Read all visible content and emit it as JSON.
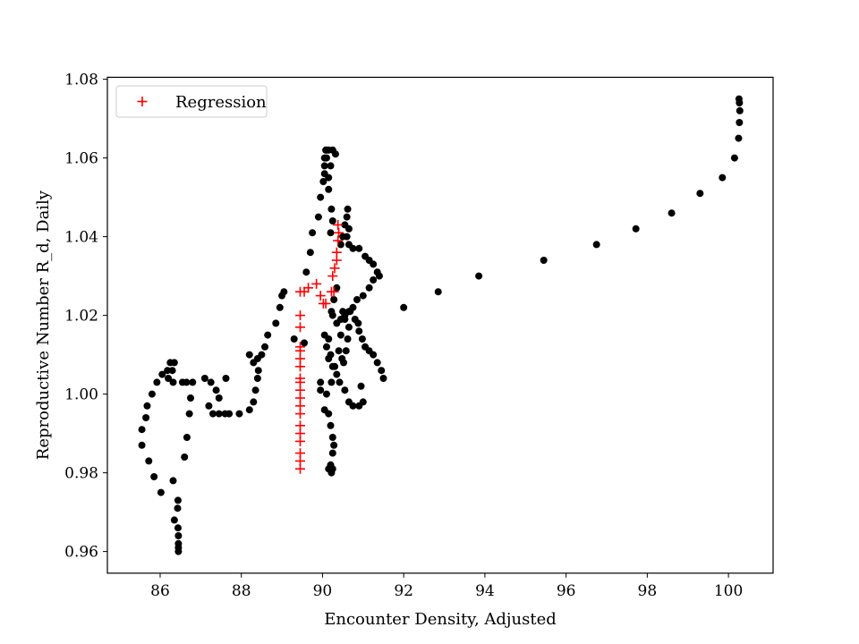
{
  "chart_data": {
    "type": "scatter",
    "xlabel": "Encounter Density, Adjusted",
    "ylabel": "Reproductive Number R_d, Daily",
    "xlim": [
      84.7,
      101.1
    ],
    "ylim": [
      0.9545,
      1.0805
    ],
    "x_ticks": [
      86,
      88,
      90,
      92,
      94,
      96,
      98,
      100
    ],
    "y_ticks": [
      0.96,
      0.98,
      1.0,
      1.02,
      1.04,
      1.06,
      1.08
    ],
    "x_tick_labels": [
      "86",
      "88",
      "90",
      "92",
      "94",
      "96",
      "98",
      "100"
    ],
    "y_tick_labels": [
      "0.96",
      "0.98",
      "1.00",
      "1.02",
      "1.04",
      "1.06",
      "1.08"
    ],
    "grid": false,
    "legend": {
      "position": "top-left",
      "entries": [
        "Regression"
      ]
    },
    "colors": {
      "observed": "#000000",
      "regression": "#ff0000",
      "frame": "#000000"
    },
    "series": [
      {
        "marker": "circle",
        "color": "#000000",
        "points": [
          [
            86.45,
            0.96
          ],
          [
            86.45,
            0.961
          ],
          [
            86.45,
            0.962
          ],
          [
            86.45,
            0.964
          ],
          [
            86.44,
            0.966
          ],
          [
            86.35,
            0.968
          ],
          [
            86.43,
            0.971
          ],
          [
            86.44,
            0.973
          ],
          [
            86.32,
            0.978
          ],
          [
            86.02,
            0.975
          ],
          [
            85.85,
            0.979
          ],
          [
            85.72,
            0.983
          ],
          [
            85.55,
            0.987
          ],
          [
            85.55,
            0.991
          ],
          [
            85.65,
            0.994
          ],
          [
            85.68,
            0.997
          ],
          [
            85.8,
            1.0
          ],
          [
            85.92,
            1.003
          ],
          [
            86.05,
            1.005
          ],
          [
            86.18,
            1.006
          ],
          [
            86.25,
            1.008
          ],
          [
            86.35,
            1.008
          ],
          [
            86.3,
            1.006
          ],
          [
            86.2,
            1.004
          ],
          [
            86.32,
            1.003
          ],
          [
            86.55,
            1.003
          ],
          [
            86.65,
            1.003
          ],
          [
            86.8,
            1.003
          ],
          [
            86.75,
            0.999
          ],
          [
            86.72,
            0.995
          ],
          [
            86.66,
            0.989
          ],
          [
            86.6,
            0.984
          ],
          [
            87.1,
            1.004
          ],
          [
            87.25,
            1.003
          ],
          [
            87.2,
            0.997
          ],
          [
            87.3,
            0.995
          ],
          [
            87.45,
            0.995
          ],
          [
            87.6,
            0.995
          ],
          [
            87.7,
            0.995
          ],
          [
            87.95,
            0.995
          ],
          [
            87.38,
            1.001
          ],
          [
            87.62,
            1.004
          ],
          [
            87.45,
            0.999
          ],
          [
            88.2,
            0.996
          ],
          [
            88.3,
            0.998
          ],
          [
            88.35,
            1.001
          ],
          [
            88.4,
            1.004
          ],
          [
            88.3,
            1.008
          ],
          [
            88.42,
            1.006
          ],
          [
            88.2,
            1.01
          ],
          [
            88.4,
            1.009
          ],
          [
            88.5,
            1.01
          ],
          [
            88.58,
            1.012
          ],
          [
            88.65,
            1.015
          ],
          [
            88.85,
            1.018
          ],
          [
            88.95,
            1.022
          ],
          [
            89.0,
            1.025
          ],
          [
            89.05,
            1.026
          ],
          [
            89.3,
            1.014
          ],
          [
            89.55,
            1.013
          ],
          [
            89.6,
            1.031
          ],
          [
            89.7,
            1.036
          ],
          [
            89.75,
            1.041
          ],
          [
            89.9,
            1.045
          ],
          [
            89.95,
            1.05
          ],
          [
            90.02,
            1.054
          ],
          [
            90.05,
            1.058
          ],
          [
            90.05,
            1.06
          ],
          [
            90.08,
            1.062
          ],
          [
            90.1,
            1.062
          ],
          [
            90.15,
            1.062
          ],
          [
            90.25,
            1.062
          ],
          [
            90.32,
            1.061
          ],
          [
            90.2,
            1.058
          ],
          [
            90.15,
            1.055
          ],
          [
            90.15,
            1.052
          ],
          [
            90.22,
            1.047
          ],
          [
            90.25,
            1.044
          ],
          [
            90.2,
            1.041
          ],
          [
            90.1,
            1.06
          ],
          [
            90.05,
            1.056
          ],
          [
            90.45,
            1.038
          ],
          [
            90.5,
            1.04
          ],
          [
            90.55,
            1.043
          ],
          [
            90.6,
            1.045
          ],
          [
            90.62,
            1.047
          ],
          [
            90.65,
            1.042
          ],
          [
            90.6,
            1.04
          ],
          [
            90.65,
            1.038
          ],
          [
            90.75,
            1.037
          ],
          [
            90.9,
            1.037
          ],
          [
            91.05,
            1.035
          ],
          [
            91.15,
            1.034
          ],
          [
            91.25,
            1.033
          ],
          [
            91.35,
            1.031
          ],
          [
            91.4,
            1.03
          ],
          [
            91.0,
            1.025
          ],
          [
            90.85,
            1.024
          ],
          [
            90.75,
            1.022
          ],
          [
            90.65,
            1.021
          ],
          [
            90.55,
            1.02
          ],
          [
            90.45,
            1.019
          ],
          [
            90.35,
            1.018
          ],
          [
            90.25,
            1.02
          ],
          [
            90.22,
            1.021
          ],
          [
            90.28,
            1.024
          ],
          [
            90.35,
            1.027
          ],
          [
            91.15,
            1.027
          ],
          [
            91.25,
            1.029
          ],
          [
            90.4,
            1.011
          ],
          [
            90.45,
            1.015
          ],
          [
            90.48,
            1.009
          ],
          [
            90.52,
            1.008
          ],
          [
            90.58,
            1.011
          ],
          [
            90.62,
            1.014
          ],
          [
            90.65,
            1.017
          ],
          [
            90.55,
            1.019
          ],
          [
            90.5,
            1.021
          ],
          [
            90.68,
            1.021
          ],
          [
            90.8,
            1.019
          ],
          [
            90.88,
            1.018
          ],
          [
            90.9,
            1.016
          ],
          [
            90.98,
            1.014
          ],
          [
            91.05,
            1.012
          ],
          [
            91.15,
            1.011
          ],
          [
            91.25,
            1.01
          ],
          [
            91.35,
            1.008
          ],
          [
            91.45,
            1.006
          ],
          [
            91.5,
            1.004
          ],
          [
            90.95,
            1.002
          ],
          [
            91.0,
            0.998
          ],
          [
            90.9,
            0.997
          ],
          [
            90.75,
            0.997
          ],
          [
            90.65,
            0.998
          ],
          [
            90.55,
            1.001
          ],
          [
            90.42,
            1.003
          ],
          [
            90.35,
            1.005
          ],
          [
            90.3,
            1.007
          ],
          [
            90.15,
            1.009
          ],
          [
            90.1,
            1.012
          ],
          [
            90.05,
            1.015
          ],
          [
            90.15,
            1.014
          ],
          [
            90.2,
            1.01
          ],
          [
            90.25,
            1.007
          ],
          [
            90.22,
            1.003
          ],
          [
            90.1,
            1.0
          ],
          [
            89.95,
            1.001
          ],
          [
            89.95,
            1.003
          ],
          [
            90.05,
            0.996
          ],
          [
            90.15,
            0.995
          ],
          [
            90.2,
            0.992
          ],
          [
            90.25,
            0.989
          ],
          [
            90.28,
            0.987
          ],
          [
            90.25,
            0.985
          ],
          [
            90.2,
            0.982
          ],
          [
            90.15,
            0.981
          ],
          [
            90.22,
            0.98
          ],
          [
            90.25,
            0.981
          ],
          [
            92.0,
            1.022
          ],
          [
            92.85,
            1.026
          ],
          [
            93.85,
            1.03
          ],
          [
            95.45,
            1.034
          ],
          [
            96.75,
            1.038
          ],
          [
            97.72,
            1.042
          ],
          [
            98.6,
            1.046
          ],
          [
            99.3,
            1.051
          ],
          [
            99.85,
            1.055
          ],
          [
            100.15,
            1.06
          ],
          [
            100.25,
            1.065
          ],
          [
            100.27,
            1.069
          ],
          [
            100.28,
            1.072
          ],
          [
            100.27,
            1.074
          ],
          [
            100.26,
            1.075
          ]
        ]
      },
      {
        "name": "Regression",
        "marker": "plus",
        "color": "#ff0000",
        "points": [
          [
            89.45,
            0.981
          ],
          [
            89.45,
            0.983
          ],
          [
            89.45,
            0.985
          ],
          [
            89.45,
            0.988
          ],
          [
            89.45,
            0.99
          ],
          [
            89.45,
            0.992
          ],
          [
            89.45,
            0.995
          ],
          [
            89.45,
            0.997
          ],
          [
            89.45,
            0.999
          ],
          [
            89.45,
            1.001
          ],
          [
            89.45,
            1.003
          ],
          [
            89.45,
            1.004
          ],
          [
            89.45,
            1.007
          ],
          [
            89.45,
            1.009
          ],
          [
            89.45,
            1.011
          ],
          [
            89.45,
            1.012
          ],
          [
            89.45,
            1.017
          ],
          [
            89.45,
            1.02
          ],
          [
            89.45,
            1.026
          ],
          [
            89.55,
            1.026
          ],
          [
            89.65,
            1.027
          ],
          [
            89.85,
            1.028
          ],
          [
            89.95,
            1.025
          ],
          [
            90.02,
            1.023
          ],
          [
            90.08,
            1.023
          ],
          [
            90.22,
            1.026
          ],
          [
            90.28,
            1.026
          ],
          [
            90.25,
            1.03
          ],
          [
            90.3,
            1.032
          ],
          [
            90.35,
            1.034
          ],
          [
            90.35,
            1.036
          ],
          [
            90.38,
            1.039
          ],
          [
            90.4,
            1.041
          ],
          [
            90.38,
            1.043
          ]
        ]
      }
    ]
  }
}
